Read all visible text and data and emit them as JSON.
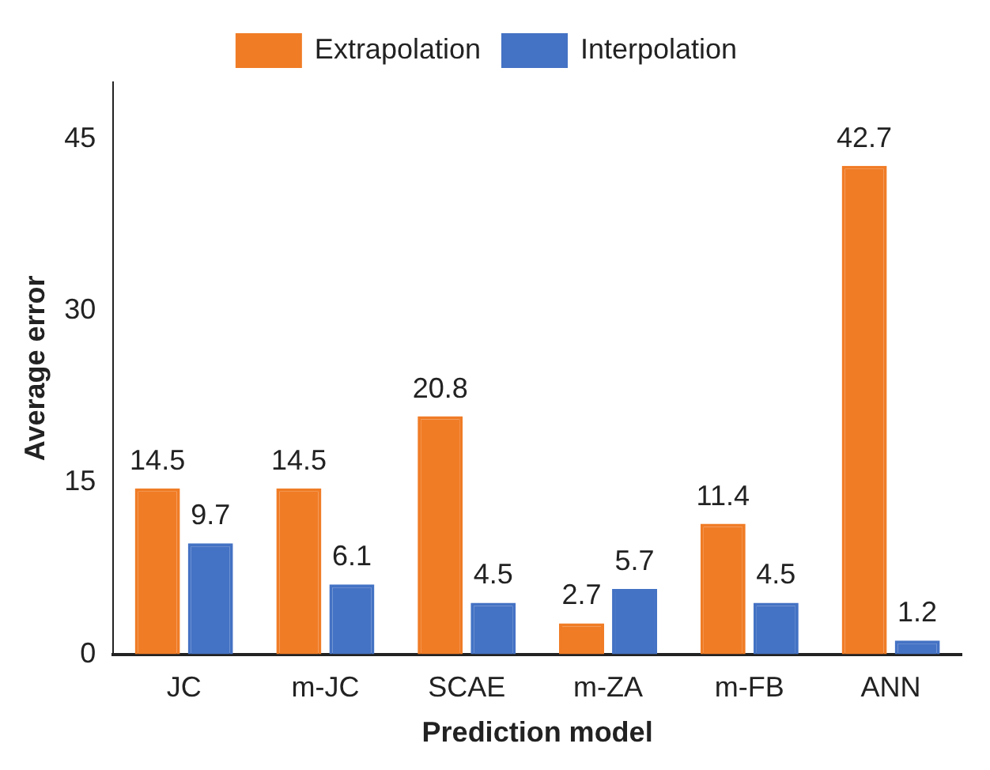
{
  "chart_data": {
    "type": "bar",
    "xlabel": "Prediction model",
    "ylabel": "Average error",
    "categories": [
      "JC",
      "m-JC",
      "SCAE",
      "m-ZA",
      "m-FB",
      "ANN"
    ],
    "series": [
      {
        "name": "Extrapolation",
        "color": "#f07c26",
        "values": [
          14.5,
          14.5,
          20.8,
          2.7,
          11.4,
          42.7
        ]
      },
      {
        "name": "Interpolation",
        "color": "#4472c4",
        "values": [
          9.7,
          6.1,
          4.5,
          5.7,
          4.5,
          1.2
        ]
      }
    ],
    "ylim": [
      0,
      50
    ],
    "yticks": [
      0,
      15,
      30,
      45
    ],
    "grid": false,
    "legend": "top",
    "data_labels": true
  }
}
